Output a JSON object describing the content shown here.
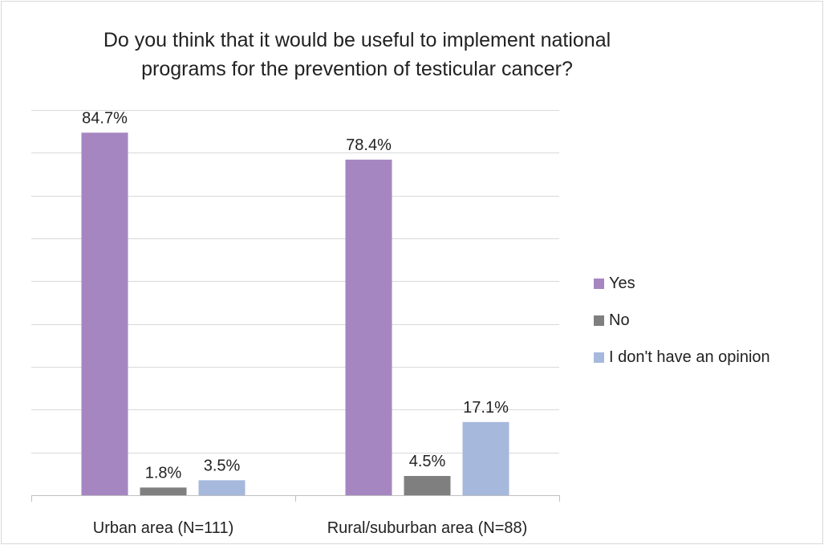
{
  "chart_data": {
    "type": "bar",
    "title": "Do you think that it would be useful to implement national programs for the prevention of testicular cancer?",
    "title_lines": [
      "Do you think that it would be useful to implement national",
      "programs for the prevention of testicular cancer?"
    ],
    "categories": [
      "Urban area (N=111)",
      "Rural/suburban area (N=88)"
    ],
    "series": [
      {
        "name": "Yes",
        "values": [
          84.7,
          78.4
        ],
        "labels": [
          "84.7%",
          "78.4%"
        ],
        "color": "#a686c1"
      },
      {
        "name": "No",
        "values": [
          1.8,
          4.5
        ],
        "labels": [
          "1.8%",
          "4.5%"
        ],
        "color": "#7f7f7f"
      },
      {
        "name": "I don't have an opinion",
        "values": [
          3.5,
          17.1
        ],
        "labels": [
          "3.5%",
          "17.1%"
        ],
        "color": "#a6b8dc"
      }
    ],
    "ylim": [
      0,
      90
    ],
    "grid": true,
    "legend_position": "right"
  }
}
